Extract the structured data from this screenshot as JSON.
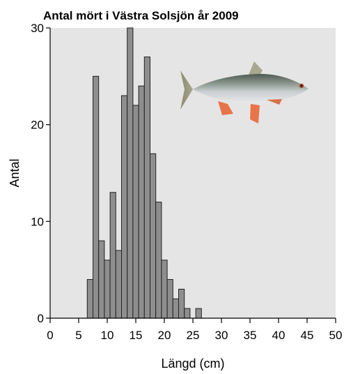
{
  "chart_data": {
    "type": "bar",
    "title": "Antal mört i Västra Solsjön år 2009",
    "xlabel": "Längd (cm)",
    "ylabel": "Antal",
    "xlim": [
      0,
      50
    ],
    "ylim": [
      0,
      30
    ],
    "xticks": [
      0,
      5,
      10,
      15,
      20,
      25,
      30,
      35,
      40,
      45,
      50
    ],
    "yticks": [
      0,
      10,
      20,
      30
    ],
    "bin_width": 1,
    "bins": [
      {
        "x": 7,
        "count": 4
      },
      {
        "x": 8,
        "count": 25
      },
      {
        "x": 9,
        "count": 8
      },
      {
        "x": 10,
        "count": 6
      },
      {
        "x": 11,
        "count": 13
      },
      {
        "x": 12,
        "count": 7
      },
      {
        "x": 13,
        "count": 23
      },
      {
        "x": 14,
        "count": 30
      },
      {
        "x": 15,
        "count": 22
      },
      {
        "x": 16,
        "count": 24
      },
      {
        "x": 17,
        "count": 27
      },
      {
        "x": 18,
        "count": 17
      },
      {
        "x": 19,
        "count": 12
      },
      {
        "x": 20,
        "count": 6
      },
      {
        "x": 21,
        "count": 4
      },
      {
        "x": 22,
        "count": 2
      },
      {
        "x": 23,
        "count": 3
      },
      {
        "x": 24,
        "count": 1
      },
      {
        "x": 26,
        "count": 1
      }
    ],
    "grid": false,
    "colors": {
      "plot_background": "#e5e5e5",
      "bar_fill": "#8e8e8e",
      "bar_stroke": "#222222"
    },
    "image": "roach-fish-illustration"
  }
}
